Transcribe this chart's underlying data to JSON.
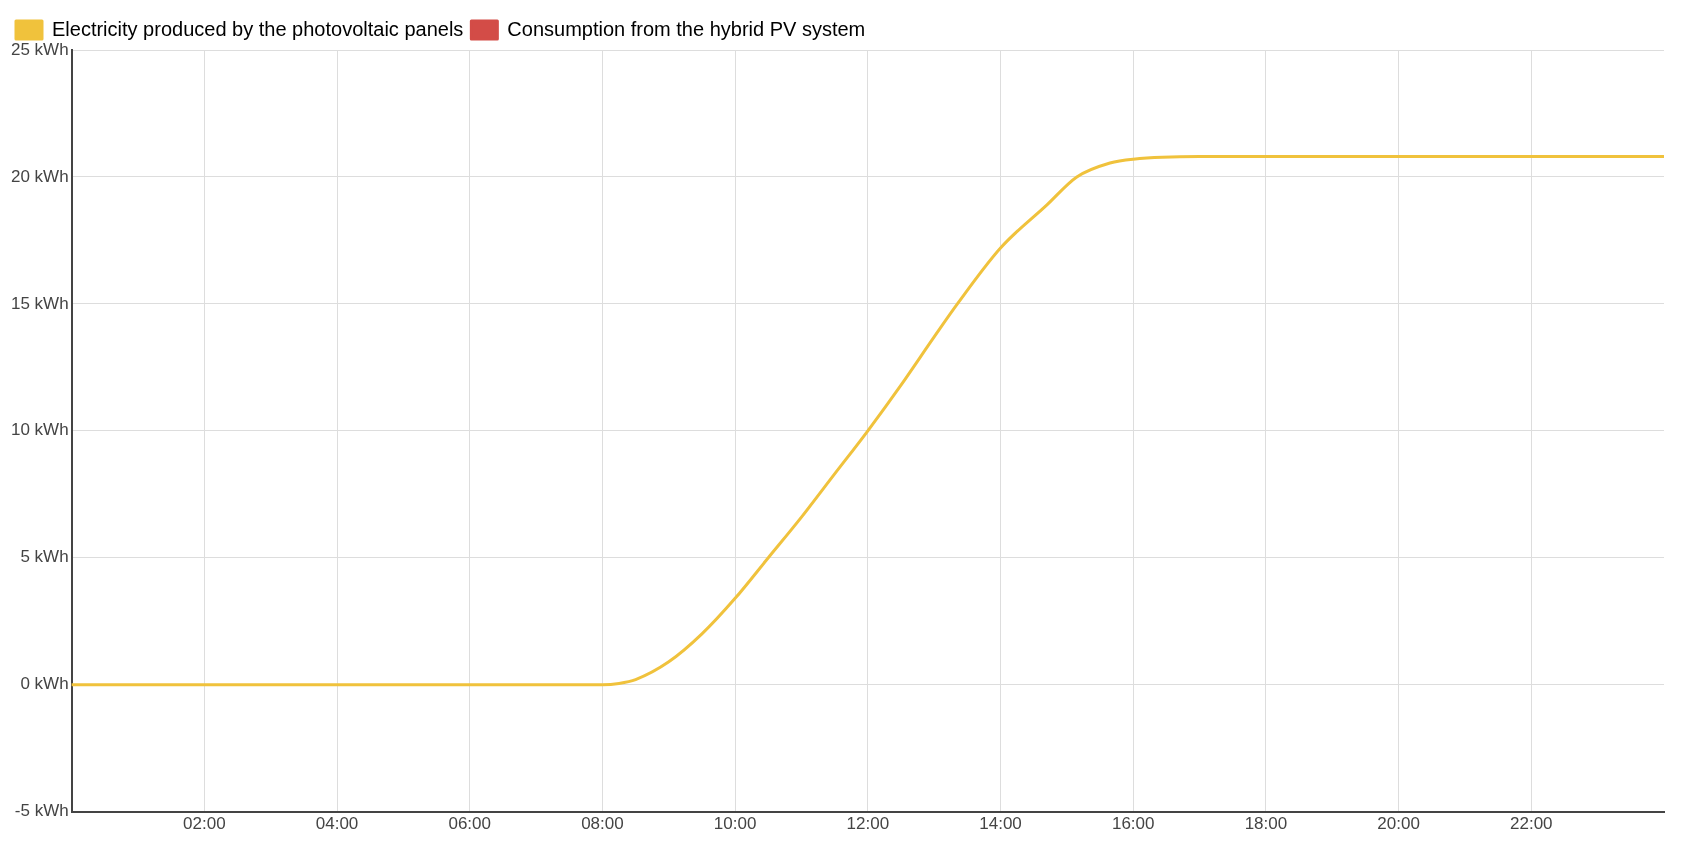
{
  "chart_data": {
    "type": "line",
    "legend": "top left",
    "grid": true,
    "marker": "none",
    "xlim": [
      0,
      24
    ],
    "xticks": [
      {
        "value": 2,
        "label": "02:00"
      },
      {
        "value": 4,
        "label": "04:00"
      },
      {
        "value": 6,
        "label": "06:00"
      },
      {
        "value": 8,
        "label": "08:00"
      },
      {
        "value": 10,
        "label": "10:00"
      },
      {
        "value": 12,
        "label": "12:00"
      },
      {
        "value": 14,
        "label": "14:00"
      },
      {
        "value": 16,
        "label": "16:00"
      },
      {
        "value": 18,
        "label": "18:00"
      },
      {
        "value": 20,
        "label": "20:00"
      },
      {
        "value": 22,
        "label": "22:00"
      }
    ],
    "ylim": [
      -5,
      25
    ],
    "yticks": [
      {
        "value": -5,
        "label": "-5 kWh"
      },
      {
        "value": 0,
        "label": "0 kWh"
      },
      {
        "value": 5,
        "label": "5 kWh"
      },
      {
        "value": 10,
        "label": "10 kWh"
      },
      {
        "value": 15,
        "label": "15 kWh"
      },
      {
        "value": 20,
        "label": "20 kWh"
      },
      {
        "value": 25,
        "label": "25 kWh"
      }
    ],
    "x": [
      0,
      2,
      4,
      6,
      8,
      8.25,
      8.5,
      9,
      9.5,
      10,
      10.5,
      11,
      11.5,
      12,
      12.5,
      13,
      13.35,
      14,
      14.7,
      15.15,
      15.65,
      16,
      17,
      18,
      20,
      22,
      24
    ],
    "series": [
      {
        "name": "Electricity produced by the photovoltaic panels",
        "color": "#f0c23c",
        "values": [
          0,
          0,
          0,
          0,
          0,
          0.05,
          0.2,
          0.9,
          2.0,
          3.4,
          5.0,
          6.6,
          8.3,
          10.0,
          11.8,
          13.7,
          15,
          17.2,
          18.9,
          20.0,
          20.55,
          20.7,
          20.8,
          20.8,
          20.8,
          20.8,
          20.8
        ]
      },
      {
        "name": "Consumption from the hybrid PV system",
        "color": "#d34c47",
        "values": [
          null,
          null,
          null,
          null,
          null,
          null,
          null,
          null,
          null,
          null,
          null,
          null,
          null,
          null,
          null,
          null,
          null,
          null,
          null,
          null,
          null,
          null,
          null,
          null,
          null,
          null,
          null
        ]
      }
    ]
  }
}
